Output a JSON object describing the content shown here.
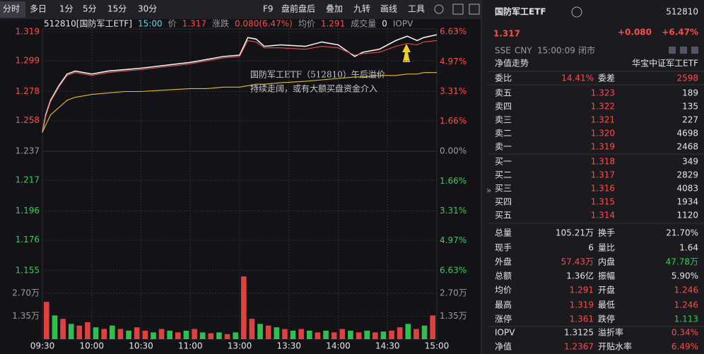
{
  "toolbar": {
    "tabs": [
      "分时",
      "多日",
      "1分",
      "5分",
      "15分",
      "30分"
    ],
    "tools": [
      "F9",
      "盘前盘后",
      "叠加",
      "九转",
      "画线",
      "工具"
    ]
  },
  "chart_data": {
    "type": "line",
    "info": [
      {
        "text": "512810[国防军工ETF]",
        "color": "white"
      },
      {
        "text": "15:00",
        "color": "cyan"
      },
      {
        "text": "价",
        "color": "gray"
      },
      {
        "text": "1.317",
        "color": "red"
      },
      {
        "text": "涨跌",
        "color": "gray"
      },
      {
        "text": "0.080(6.47%)",
        "color": "red"
      },
      {
        "text": "均价",
        "color": "gray"
      },
      {
        "text": "1.291",
        "color": "red"
      },
      {
        "text": "成交量",
        "color": "gray"
      },
      {
        "text": "0",
        "color": "white"
      },
      {
        "text": "IOPV",
        "color": "gray"
      }
    ],
    "x": [
      0,
      2,
      5,
      10,
      15,
      20,
      30,
      40,
      50,
      60,
      75,
      90,
      100,
      110,
      120,
      125,
      130,
      135,
      145,
      160,
      170,
      180,
      190,
      195,
      205,
      215,
      222,
      228,
      232,
      240
    ],
    "series": [
      {
        "name": "价",
        "color": "#f2f2f2",
        "values": [
          1.25,
          1.262,
          1.272,
          1.282,
          1.29,
          1.292,
          1.29,
          1.292,
          1.293,
          1.294,
          1.296,
          1.298,
          1.3,
          1.302,
          1.303,
          1.315,
          1.314,
          1.309,
          1.31,
          1.309,
          1.312,
          1.31,
          1.302,
          1.305,
          1.307,
          1.313,
          1.316,
          1.313,
          1.315,
          1.317
        ]
      },
      {
        "name": "IOPV",
        "color": "#e05050",
        "values": [
          1.25,
          1.261,
          1.271,
          1.281,
          1.289,
          1.291,
          1.289,
          1.291,
          1.292,
          1.293,
          1.295,
          1.297,
          1.299,
          1.301,
          1.302,
          1.313,
          1.312,
          1.308,
          1.308,
          1.307,
          1.309,
          1.308,
          1.303,
          1.304,
          1.305,
          1.309,
          1.311,
          1.31,
          1.312,
          1.313
        ]
      },
      {
        "name": "均价",
        "color": "#e8c020",
        "values": [
          1.25,
          1.255,
          1.262,
          1.267,
          1.272,
          1.274,
          1.276,
          1.277,
          1.278,
          1.278,
          1.279,
          1.28,
          1.28,
          1.281,
          1.281,
          1.282,
          1.283,
          1.283,
          1.284,
          1.285,
          1.286,
          1.287,
          1.288,
          1.288,
          1.289,
          1.289,
          1.29,
          1.29,
          1.291,
          1.291
        ]
      }
    ],
    "xlim": [
      0,
      240
    ],
    "xticks": [
      {
        "value": 0,
        "label": "09:30"
      },
      {
        "value": 30,
        "label": "10:00"
      },
      {
        "value": 60,
        "label": "10:30"
      },
      {
        "value": 90,
        "label": "11:00"
      },
      {
        "value": 120,
        "label": "13:00"
      },
      {
        "value": 150,
        "label": "13:30"
      },
      {
        "value": 180,
        "label": "14:00"
      },
      {
        "value": 210,
        "label": "14:30"
      },
      {
        "value": 240,
        "label": "15:00"
      }
    ],
    "ylim": [
      1.155,
      1.319
    ],
    "yticks": [
      1.319,
      1.299,
      1.278,
      1.258,
      1.237,
      1.217,
      1.196,
      1.176,
      1.155
    ],
    "y2lim": [
      -6.63,
      6.63
    ],
    "y2ticks": [
      {
        "value": 6.63,
        "label": "6.63%"
      },
      {
        "value": 4.97,
        "label": "4.97%"
      },
      {
        "value": 3.31,
        "label": "3.31%"
      },
      {
        "value": 1.66,
        "label": "1.66%"
      },
      {
        "value": 0,
        "label": "0.00%"
      },
      {
        "value": -1.66,
        "label": "1.66%"
      },
      {
        "value": -3.31,
        "label": "3.31%"
      },
      {
        "value": -4.97,
        "label": "4.97%"
      },
      {
        "value": -6.63,
        "label": "6.63%"
      }
    ],
    "grid": true,
    "annotation": [
      "国防军工ETF（512810）午后溢价",
      "持续走阔，或有大额买盘资金介入"
    ],
    "volume": {
      "values": [
        22000,
        14000,
        12000,
        9000,
        8000,
        10000,
        7000,
        6000,
        8000,
        6000,
        5000,
        7000,
        5000,
        4000,
        6000,
        5000,
        4000,
        5000,
        6000,
        4000,
        3500,
        4000,
        3000,
        4000,
        37000,
        12000,
        9000,
        8000,
        7000,
        6000,
        5000,
        6000,
        5000,
        4000,
        5000,
        4000,
        6000,
        5000,
        4000,
        5000,
        4000,
        4500,
        5000,
        7000,
        9000,
        6000,
        8000,
        14000
      ],
      "colors": [
        "#e04040",
        "#2fbf4f",
        "#e04040",
        "#2fbf4f",
        "#e04040",
        "#e04040",
        "#2fbf4f",
        "#e04040",
        "#2fbf4f",
        "#e04040",
        "#2fbf4f",
        "#e04040",
        "#e04040",
        "#2fbf4f",
        "#e04040",
        "#2fbf4f",
        "#e04040",
        "#2fbf4f",
        "#e04040",
        "#2fbf4f",
        "#e04040",
        "#2fbf4f",
        "#e04040",
        "#2fbf4f",
        "#e04040",
        "#e04040",
        "#2fbf4f",
        "#e04040",
        "#2fbf4f",
        "#e04040",
        "#2fbf4f",
        "#e04040",
        "#2fbf4f",
        "#e04040",
        "#2fbf4f",
        "#e04040",
        "#e04040",
        "#2fbf4f",
        "#e04040",
        "#2fbf4f",
        "#e04040",
        "#2fbf4f",
        "#e04040",
        "#e04040",
        "#2fbf4f",
        "#e04040",
        "#2fbf4f",
        "#e04040"
      ],
      "vlim": [
        0,
        37500
      ],
      "vticks": [
        {
          "value": 27000,
          "label": "2.70万"
        },
        {
          "value": 13500,
          "label": "1.35万"
        }
      ]
    }
  },
  "quote": {
    "name": "国防军工ETF",
    "code": "512810",
    "price": "1.317",
    "change": "+0.080",
    "pct": "+6.47%",
    "meta": [
      "SSE",
      "CNY",
      "15:00:09",
      "闭市"
    ]
  },
  "nav": {
    "label": "净值走势",
    "fund": "华宝中证军工ETF"
  },
  "book": {
    "ratio": [
      "委比",
      "14.41%",
      "委差",
      "2598"
    ],
    "asks": [
      [
        "卖五",
        "1.323",
        "189"
      ],
      [
        "卖四",
        "1.322",
        "135"
      ],
      [
        "卖三",
        "1.321",
        "227"
      ],
      [
        "卖二",
        "1.320",
        "4698"
      ],
      [
        "卖一",
        "1.319",
        "2468"
      ]
    ],
    "bids": [
      [
        "买一",
        "1.318",
        "349"
      ],
      [
        "买二",
        "1.317",
        "2829"
      ],
      [
        "买三",
        "1.316",
        "4083"
      ],
      [
        "买四",
        "1.315",
        "1934"
      ],
      [
        "买五",
        "1.314",
        "1120"
      ]
    ]
  },
  "stats": [
    {
      "cells": [
        "总量",
        "105.21万",
        "换手",
        "21.70%"
      ],
      "colors": [
        "white",
        "white"
      ]
    },
    {
      "cells": [
        "现手",
        "6",
        "量比",
        "1.64"
      ],
      "colors": [
        "white",
        "white"
      ]
    },
    {
      "cells": [
        "外盘",
        "57.43万",
        "内盘",
        "47.78万"
      ],
      "colors": [
        "red",
        "green"
      ]
    },
    {
      "cells": [
        "总额",
        "1.36亿",
        "振幅",
        "5.90%"
      ],
      "colors": [
        "white",
        "white"
      ]
    },
    {
      "cells": [
        "均价",
        "1.291",
        "开盘",
        "1.246"
      ],
      "colors": [
        "red",
        "red"
      ]
    },
    {
      "cells": [
        "最高",
        "1.319",
        "最低",
        "1.246"
      ],
      "colors": [
        "red",
        "red"
      ]
    },
    {
      "cells": [
        "涨停",
        "1.361",
        "跌停",
        "1.113"
      ],
      "colors": [
        "red",
        "green"
      ]
    },
    {
      "cells": [
        "IOPV",
        "1.3125",
        "溢折率",
        "0.34%"
      ],
      "colors": [
        "white",
        "red"
      ]
    },
    {
      "cells": [
        "净值",
        "1.2367",
        "开贴水率",
        "6.49%"
      ],
      "colors": [
        "red",
        "red"
      ]
    }
  ]
}
